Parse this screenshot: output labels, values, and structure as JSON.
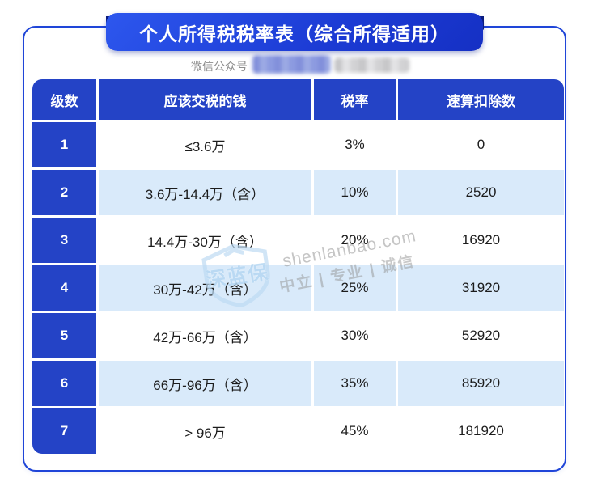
{
  "banner": {
    "title": "个人所得税税率表（综合所得适用）"
  },
  "wechat": {
    "label": "微信公众号",
    "account_redacted": true
  },
  "table": {
    "columns": [
      "级数",
      "应该交税的钱",
      "税率",
      "速算扣除数"
    ],
    "rows": [
      {
        "level": "1",
        "range": "≤3.6万",
        "rate": "3%",
        "deduction": "0"
      },
      {
        "level": "2",
        "range": "3.6万-14.4万（含）",
        "rate": "10%",
        "deduction": "2520"
      },
      {
        "level": "3",
        "range": "14.4万-30万（含）",
        "rate": "20%",
        "deduction": "16920"
      },
      {
        "level": "4",
        "range": "30万-42万（含）",
        "rate": "25%",
        "deduction": "31920"
      },
      {
        "level": "5",
        "range": "42万-66万（含）",
        "rate": "30%",
        "deduction": "52920"
      },
      {
        "level": "6",
        "range": "66万-96万（含）",
        "rate": "35%",
        "deduction": "85920"
      },
      {
        "level": "7",
        "range": "> 96万",
        "rate": "45%",
        "deduction": "181920"
      }
    ]
  },
  "watermark": {
    "brand": "深蓝保",
    "line1": "shenlanbao.com",
    "line2": "中立 | 专业 | 诚信"
  },
  "colors": {
    "accent_blue": "#2443c6",
    "banner_blue": "#1c3bd4",
    "border_blue": "#1f45d8",
    "row_alt_blue": "#d9eafa",
    "fold_navy": "#0b1d7e"
  }
}
